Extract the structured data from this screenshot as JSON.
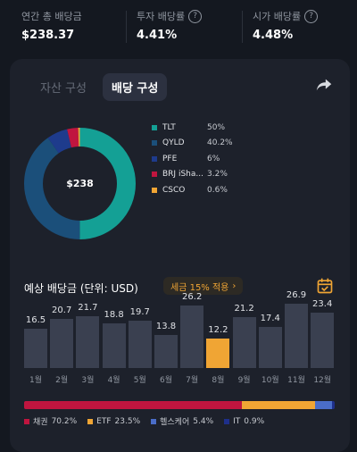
{
  "stats": [
    {
      "label": "연간 총 배당금",
      "value": "$238.37",
      "has_info": false
    },
    {
      "label": "투자 배당률",
      "value": "4.41%",
      "has_info": true
    },
    {
      "label": "시가 배당률",
      "value": "4.48%",
      "has_info": true
    }
  ],
  "tabs": [
    {
      "label": "자산 구성",
      "active": false
    },
    {
      "label": "배당 구성",
      "active": true
    }
  ],
  "donut": {
    "center_label": "$238",
    "colors": {
      "TLT": "#14a095",
      "QYLD": "#1b4f7a",
      "PFE": "#1e3b8c",
      "BRJ": "#c0153f",
      "CSCO": "#f0a534",
      "track": "#1d212b"
    }
  },
  "legend": [
    {
      "name": "TLT",
      "pct": "50%",
      "share": 50,
      "color": "#14a095"
    },
    {
      "name": "QYLD",
      "pct": "40.2%",
      "share": 40.2,
      "color": "#1b4f7a"
    },
    {
      "name": "PFE",
      "pct": "6%",
      "share": 6,
      "color": "#1e3b8c"
    },
    {
      "name": "BRJ iSha...",
      "pct": "3.2%",
      "share": 3.2,
      "color": "#c0153f"
    },
    {
      "name": "CSCO",
      "pct": "0.6%",
      "share": 0.6,
      "color": "#f0a534"
    }
  ],
  "forecast": {
    "title": "예상 배당금 (단위: USD)",
    "tax_badge": "세금 15% 적용",
    "tax_chevron": "›"
  },
  "chart_data": {
    "type": "bar",
    "categories": [
      "1월",
      "2월",
      "3월",
      "4월",
      "5월",
      "6월",
      "7월",
      "8월",
      "9월",
      "10월",
      "11월",
      "12월"
    ],
    "values": [
      16.5,
      20.7,
      21.7,
      18.8,
      19.7,
      13.8,
      26.2,
      12.2,
      21.2,
      17.4,
      26.9,
      23.4
    ],
    "value_labels": [
      "16.5",
      "20.7",
      "21.7",
      "18.8",
      "19.7",
      "13.8",
      "26.2",
      "12.2",
      "21.2",
      "17.4",
      "26.9",
      "23.4"
    ],
    "highlight_index": 7,
    "ylim": [
      0,
      30
    ],
    "colors": {
      "bar": "#3a4050",
      "highlight": "#f0a534"
    }
  },
  "sectors": [
    {
      "name": "채권",
      "pct": "70.2%",
      "share": 70.2,
      "color": "#c0153f"
    },
    {
      "name": "ETF",
      "pct": "23.5%",
      "share": 23.5,
      "color": "#f0a534"
    },
    {
      "name": "헬스케어",
      "pct": "5.4%",
      "share": 5.4,
      "color": "#4a6dc8"
    },
    {
      "name": "IT",
      "pct": "0.9%",
      "share": 0.9,
      "color": "#1e2f8a"
    }
  ]
}
